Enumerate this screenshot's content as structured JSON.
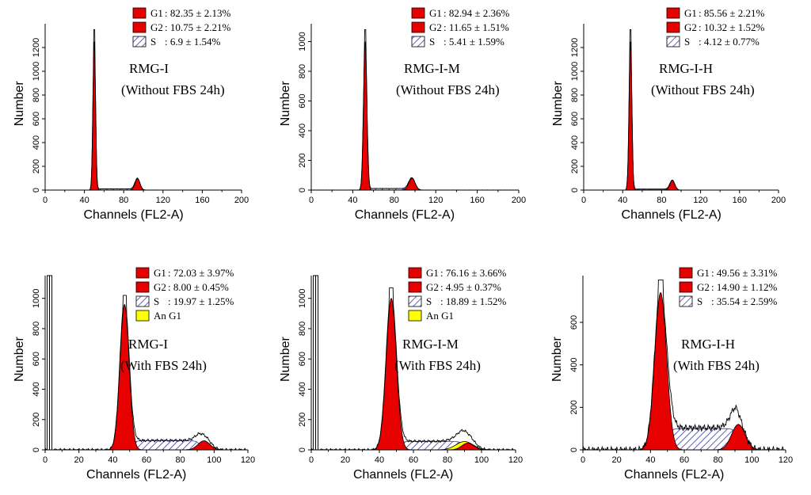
{
  "colors": {
    "g1": "#e60000",
    "g2": "#e60000",
    "s_fill": "#ffffff",
    "s_hatch": "#3b3ba8",
    "an_g1": "#ffff00",
    "line": "#000000"
  },
  "chart_data": [
    {
      "type": "histogram",
      "xlabel": "Channels  (FL2-A)",
      "ylabel": "Number",
      "xlim": [
        0,
        200
      ],
      "xticks": [
        0,
        40,
        80,
        120,
        160,
        200
      ],
      "ylim": [
        0,
        1400
      ],
      "yticks": [
        0,
        200,
        400,
        600,
        800,
        1000,
        1200
      ],
      "annotation": [
        "RMG-I",
        "(Without FBS 24h)"
      ],
      "legend": [
        {
          "key": "g1",
          "label": "G1",
          "value": ": 82.35 ± 2.13%"
        },
        {
          "key": "g2",
          "label": "G2",
          "value": ": 10.75 ± 2.21%"
        },
        {
          "key": "s",
          "label": "S",
          "value": ":  6.9 ± 1.54%"
        }
      ],
      "g1": {
        "center": 50,
        "sigma": 1.3,
        "height": 1250
      },
      "g2": {
        "center": 94,
        "sigma": 2.5,
        "height": 95
      },
      "s": {
        "from": 52,
        "to": 92,
        "level": 10
      },
      "an": null,
      "outline_peak": 1350,
      "debris": 0
    },
    {
      "type": "histogram",
      "xlabel": "Channels  (FL2-A)",
      "ylabel": "Number",
      "xlim": [
        0,
        200
      ],
      "xticks": [
        0,
        40,
        80,
        120,
        160,
        200
      ],
      "ylim": [
        0,
        1120
      ],
      "yticks": [
        0,
        200,
        400,
        600,
        800,
        1000
      ],
      "annotation": [
        "RMG-I-M",
        "(Without FBS 24h)"
      ],
      "legend": [
        {
          "key": "g1",
          "label": "G1",
          "value": ": 82.94 ± 2.36%"
        },
        {
          "key": "g2",
          "label": "G2",
          "value": ": 11.65 ± 1.51%"
        },
        {
          "key": "s",
          "label": "S",
          "value": ":  5.41 ± 1.59%"
        }
      ],
      "g1": {
        "center": 52,
        "sigma": 1.6,
        "height": 1000
      },
      "g2": {
        "center": 97,
        "sigma": 3,
        "height": 80
      },
      "s": {
        "from": 54,
        "to": 94,
        "level": 10
      },
      "an": null,
      "outline_peak": 1080,
      "debris": 0
    },
    {
      "type": "histogram",
      "xlabel": "Channels  (FL2-A)",
      "ylabel": "Number",
      "xlim": [
        0,
        200
      ],
      "xticks": [
        0,
        40,
        80,
        120,
        160,
        200
      ],
      "ylim": [
        0,
        1400
      ],
      "yticks": [
        0,
        200,
        400,
        600,
        800,
        1000,
        1200
      ],
      "annotation": [
        "RMG-I-H",
        "(Without FBS 24h)"
      ],
      "legend": [
        {
          "key": "g1",
          "label": "G1",
          "value": ": 85.56 ± 2.21%"
        },
        {
          "key": "g2",
          "label": "G2",
          "value": ": 10.32 ± 1.52%"
        },
        {
          "key": "s",
          "label": "S",
          "value": ":  4.12 ± 0.77%"
        }
      ],
      "g1": {
        "center": 48,
        "sigma": 1.4,
        "height": 1250
      },
      "g2": {
        "center": 91,
        "sigma": 2.5,
        "height": 80
      },
      "s": {
        "from": 50,
        "to": 89,
        "level": 8
      },
      "an": null,
      "outline_peak": 1350,
      "debris": 0
    },
    {
      "type": "histogram",
      "xlabel": "Channels  (FL2-A)",
      "ylabel": "Number",
      "xlim": [
        0,
        120
      ],
      "xticks": [
        0,
        20,
        40,
        60,
        80,
        100,
        120
      ],
      "ylim": [
        0,
        1150
      ],
      "yticks": [
        0,
        200,
        400,
        600,
        800,
        1000
      ],
      "annotation": [
        "RMG-I",
        "(With FBS 24h)"
      ],
      "legend": [
        {
          "key": "g1",
          "label": "G1",
          "value": ": 72.03 ± 3.97%"
        },
        {
          "key": "g2",
          "label": "G2",
          "value": ":  8.00 ± 0.45%"
        },
        {
          "key": "s",
          "label": "S",
          "value": ": 19.97 ± 1.25%"
        },
        {
          "key": "an",
          "label": "An G1",
          "value": ""
        }
      ],
      "g1": {
        "center": 47,
        "sigma": 2.7,
        "height": 960
      },
      "g2": {
        "center": 94,
        "sigma": 3.5,
        "height": 60
      },
      "s": {
        "from": 51,
        "to": 92,
        "level": 60
      },
      "an": {
        "center": 94,
        "sigma": 4,
        "height": 25
      },
      "outline_peak": 1020,
      "debris": 1150
    },
    {
      "type": "histogram",
      "xlabel": "Channels  (FL2-A)",
      "ylabel": "Number",
      "xlim": [
        0,
        120
      ],
      "xticks": [
        0,
        20,
        40,
        60,
        80,
        100,
        120
      ],
      "ylim": [
        0,
        1150
      ],
      "yticks": [
        0,
        200,
        400,
        600,
        800,
        1000
      ],
      "annotation": [
        "RMG-I-M",
        "(With FBS 24h)"
      ],
      "legend": [
        {
          "key": "g1",
          "label": "G1",
          "value": ": 76.16 ± 3.66%"
        },
        {
          "key": "g2",
          "label": "G2",
          "value": ":  4.95 ± 0.37%"
        },
        {
          "key": "s",
          "label": "S",
          "value": ": 18.89 ± 1.52%"
        },
        {
          "key": "an",
          "label": "An G1",
          "value": ""
        }
      ],
      "g1": {
        "center": 47,
        "sigma": 3,
        "height": 1000
      },
      "g2": {
        "center": 92,
        "sigma": 3.5,
        "height": 45
      },
      "s": {
        "from": 51,
        "to": 90,
        "level": 55
      },
      "an": {
        "center": 90,
        "sigma": 5,
        "height": 55
      },
      "outline_peak": 1070,
      "debris": 1150
    },
    {
      "type": "histogram",
      "xlabel": "Channels  (FL2-A)",
      "ylabel": "Number",
      "xlim": [
        0,
        120
      ],
      "xticks": [
        0,
        20,
        40,
        60,
        80,
        100,
        120
      ],
      "ylim": [
        0,
        820
      ],
      "yticks": [
        0,
        200,
        400,
        600
      ],
      "annotation": [
        "RMG-I-H",
        "(With FBS 24h)"
      ],
      "legend": [
        {
          "key": "g1",
          "label": "G1",
          "value": ": 49.56 ± 3.31%"
        },
        {
          "key": "g2",
          "label": "G2",
          "value": ": 14.90 ± 1.12%"
        },
        {
          "key": "s",
          "label": "S",
          "value": ": 35.54 ± 2.59%"
        }
      ],
      "g1": {
        "center": 46,
        "sigma": 3.5,
        "height": 740
      },
      "g2": {
        "center": 92,
        "sigma": 4,
        "height": 120
      },
      "s": {
        "from": 50,
        "to": 92,
        "level": 100
      },
      "an": null,
      "outline_peak": 800,
      "debris": 0
    }
  ]
}
